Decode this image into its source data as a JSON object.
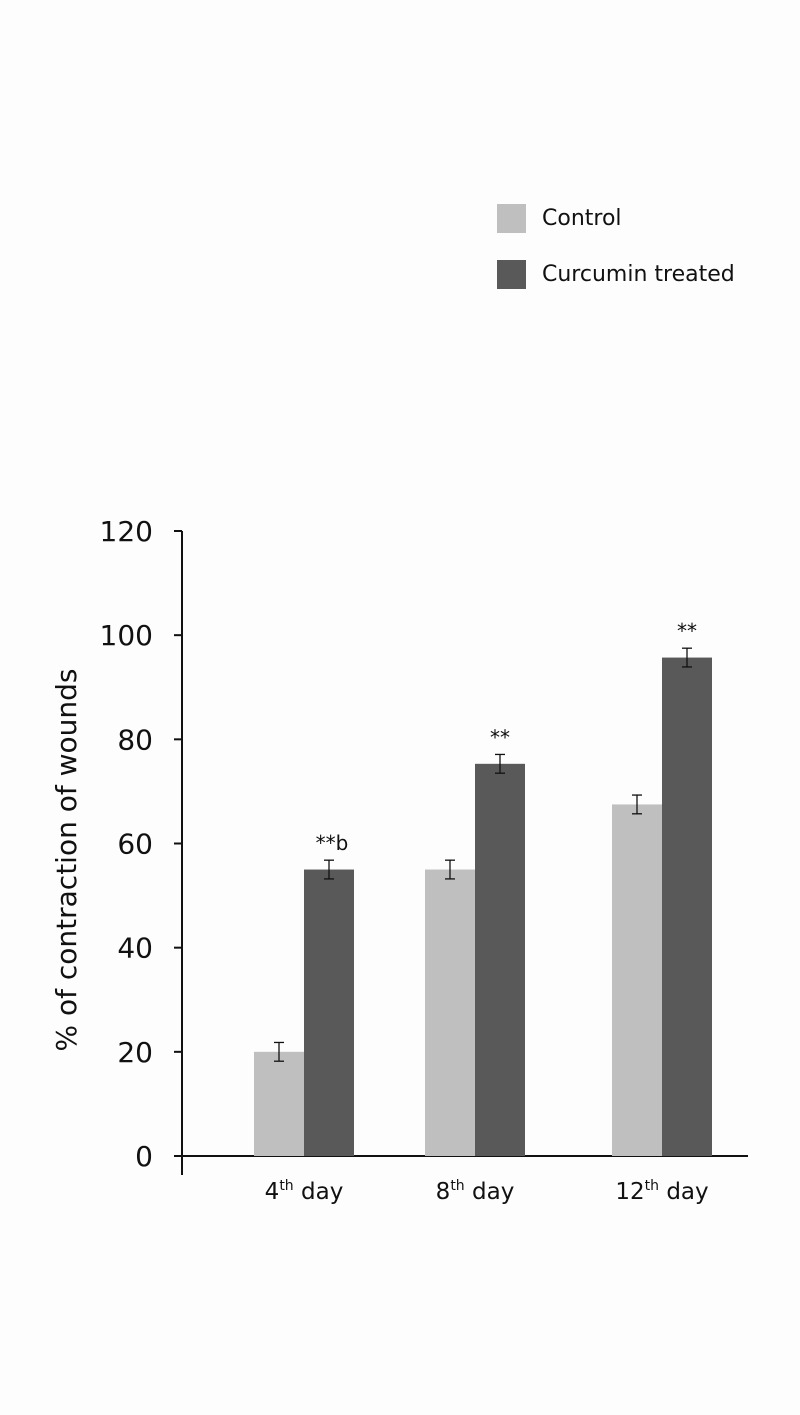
{
  "chart_data": {
    "type": "bar",
    "categories": [
      {
        "base": "4",
        "sup": "th",
        "rest": " day"
      },
      {
        "base": "8",
        "sup": "th",
        "rest": " day"
      },
      {
        "base": "12",
        "sup": "th",
        "rest": " day"
      }
    ],
    "series": [
      {
        "name": "Control",
        "color": "#c0bfc0",
        "values": [
          20,
          55,
          67.5
        ],
        "errors": [
          1.8,
          1.8,
          1.8
        ],
        "annotations": [
          "",
          "",
          ""
        ]
      },
      {
        "name": "Curcumin treated",
        "color": "#595959",
        "values": [
          55,
          75.3,
          95.7
        ],
        "errors": [
          1.8,
          1.8,
          1.8
        ],
        "annotations": [
          "**b",
          "**",
          "**"
        ]
      }
    ],
    "ylabel": "% of contraction of wounds",
    "xlabel": "",
    "ylim": [
      0,
      120
    ],
    "yticks": [
      0,
      20,
      40,
      60,
      80,
      100,
      120
    ],
    "grid": false,
    "legend_position": "top-right"
  }
}
